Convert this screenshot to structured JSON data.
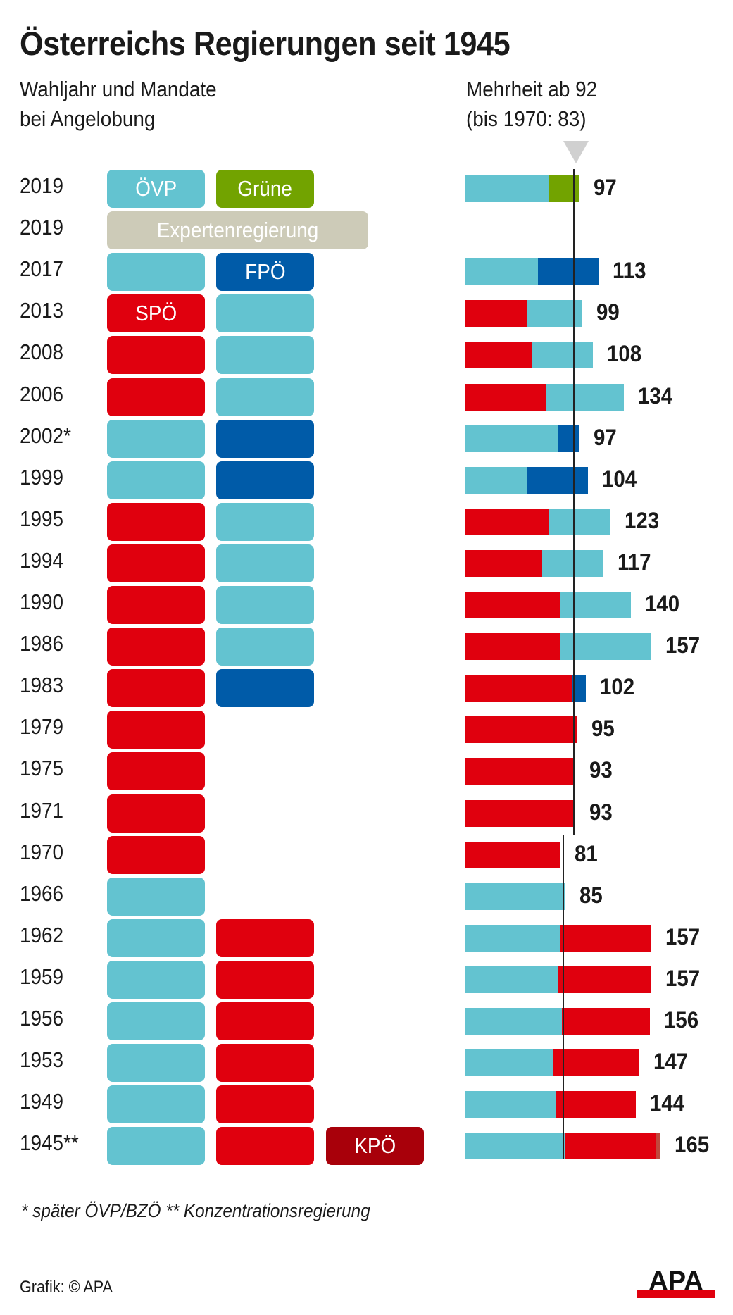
{
  "title": "Österreichs Regierungen seit 1945",
  "subtitle_left": [
    "Wahljahr und Mandate",
    "bei Angelobung"
  ],
  "subtitle_right": [
    "Mehrheit ab 92",
    "(bis 1970: 83)"
  ],
  "footnote": "* später ÖVP/BZÖ   ** Konzentrationsregierung",
  "credit": "Grafik: © APA",
  "logo_text": "APA",
  "colors": {
    "OEVP": "#63c3d0",
    "SPOE": "#e0000e",
    "FPOE": "#005ba8",
    "GRUENE": "#72a300",
    "KPOE": "#a8000a",
    "KPOE_bar": "#c0483c",
    "EXPERT": "#cdcbb8"
  },
  "chart_data": {
    "type": "bar",
    "stacked": true,
    "orientation": "horizontal",
    "xlabel": "Mandate",
    "majority_lines": [
      {
        "from": 1971,
        "value": 92
      },
      {
        "until": 1970,
        "value": 83
      }
    ],
    "rows": [
      {
        "year": "2019",
        "boxes": [
          {
            "party": "OEVP",
            "label": "ÖVP"
          },
          {
            "party": "GRUENE",
            "label": "Grüne"
          }
        ],
        "segments": [
          {
            "party": "OEVP",
            "seats": 71
          },
          {
            "party": "GRUENE",
            "seats": 26
          }
        ],
        "total": "97",
        "majority": 92
      },
      {
        "year": "2019",
        "boxes": [
          {
            "party": "EXPERT",
            "label": "Expertenregierung",
            "wide": true
          }
        ],
        "segments": [],
        "total": null,
        "majority": 92
      },
      {
        "year": "2017",
        "boxes": [
          {
            "party": "OEVP"
          },
          {
            "party": "FPOE",
            "label": "FPÖ"
          }
        ],
        "segments": [
          {
            "party": "OEVP",
            "seats": 62
          },
          {
            "party": "FPOE",
            "seats": 51
          }
        ],
        "total": "113",
        "majority": 92
      },
      {
        "year": "2013",
        "boxes": [
          {
            "party": "SPOE",
            "label": "SPÖ"
          },
          {
            "party": "OEVP"
          }
        ],
        "segments": [
          {
            "party": "SPOE",
            "seats": 52
          },
          {
            "party": "OEVP",
            "seats": 47
          }
        ],
        "total": "99",
        "majority": 92
      },
      {
        "year": "2008",
        "boxes": [
          {
            "party": "SPOE"
          },
          {
            "party": "OEVP"
          }
        ],
        "segments": [
          {
            "party": "SPOE",
            "seats": 57
          },
          {
            "party": "OEVP",
            "seats": 51
          }
        ],
        "total": "108",
        "majority": 92
      },
      {
        "year": "2006",
        "boxes": [
          {
            "party": "SPOE"
          },
          {
            "party": "OEVP"
          }
        ],
        "segments": [
          {
            "party": "SPOE",
            "seats": 68
          },
          {
            "party": "OEVP",
            "seats": 66
          }
        ],
        "total": "134",
        "majority": 92
      },
      {
        "year": "2002*",
        "boxes": [
          {
            "party": "OEVP"
          },
          {
            "party": "FPOE"
          }
        ],
        "segments": [
          {
            "party": "OEVP",
            "seats": 79
          },
          {
            "party": "FPOE",
            "seats": 18
          }
        ],
        "total": "97",
        "majority": 92
      },
      {
        "year": "1999",
        "boxes": [
          {
            "party": "OEVP"
          },
          {
            "party": "FPOE"
          }
        ],
        "segments": [
          {
            "party": "OEVP",
            "seats": 52
          },
          {
            "party": "FPOE",
            "seats": 52
          }
        ],
        "total": "104",
        "majority": 92
      },
      {
        "year": "1995",
        "boxes": [
          {
            "party": "SPOE"
          },
          {
            "party": "OEVP"
          }
        ],
        "segments": [
          {
            "party": "SPOE",
            "seats": 71
          },
          {
            "party": "OEVP",
            "seats": 52
          }
        ],
        "total": "123",
        "majority": 92
      },
      {
        "year": "1994",
        "boxes": [
          {
            "party": "SPOE"
          },
          {
            "party": "OEVP"
          }
        ],
        "segments": [
          {
            "party": "SPOE",
            "seats": 65
          },
          {
            "party": "OEVP",
            "seats": 52
          }
        ],
        "total": "117",
        "majority": 92
      },
      {
        "year": "1990",
        "boxes": [
          {
            "party": "SPOE"
          },
          {
            "party": "OEVP"
          }
        ],
        "segments": [
          {
            "party": "SPOE",
            "seats": 80
          },
          {
            "party": "OEVP",
            "seats": 60
          }
        ],
        "total": "140",
        "majority": 92
      },
      {
        "year": "1986",
        "boxes": [
          {
            "party": "SPOE"
          },
          {
            "party": "OEVP"
          }
        ],
        "segments": [
          {
            "party": "SPOE",
            "seats": 80
          },
          {
            "party": "OEVP",
            "seats": 77
          }
        ],
        "total": "157",
        "majority": 92
      },
      {
        "year": "1983",
        "boxes": [
          {
            "party": "SPOE"
          },
          {
            "party": "FPOE"
          }
        ],
        "segments": [
          {
            "party": "SPOE",
            "seats": 90
          },
          {
            "party": "FPOE",
            "seats": 12
          }
        ],
        "total": "102",
        "majority": 92
      },
      {
        "year": "1979",
        "boxes": [
          {
            "party": "SPOE"
          }
        ],
        "segments": [
          {
            "party": "SPOE",
            "seats": 95
          }
        ],
        "total": "95",
        "majority": 92
      },
      {
        "year": "1975",
        "boxes": [
          {
            "party": "SPOE"
          }
        ],
        "segments": [
          {
            "party": "SPOE",
            "seats": 93
          }
        ],
        "total": "93",
        "majority": 92
      },
      {
        "year": "1971",
        "boxes": [
          {
            "party": "SPOE"
          }
        ],
        "segments": [
          {
            "party": "SPOE",
            "seats": 93
          }
        ],
        "total": "93",
        "majority": 92
      },
      {
        "year": "1970",
        "boxes": [
          {
            "party": "SPOE"
          }
        ],
        "segments": [
          {
            "party": "SPOE",
            "seats": 81
          }
        ],
        "total": "81",
        "majority": 83
      },
      {
        "year": "1966",
        "boxes": [
          {
            "party": "OEVP"
          }
        ],
        "segments": [
          {
            "party": "OEVP",
            "seats": 85
          }
        ],
        "total": "85",
        "majority": 83
      },
      {
        "year": "1962",
        "boxes": [
          {
            "party": "OEVP"
          },
          {
            "party": "SPOE"
          }
        ],
        "segments": [
          {
            "party": "OEVP",
            "seats": 81
          },
          {
            "party": "SPOE",
            "seats": 76
          }
        ],
        "total": "157",
        "majority": 83
      },
      {
        "year": "1959",
        "boxes": [
          {
            "party": "OEVP"
          },
          {
            "party": "SPOE"
          }
        ],
        "segments": [
          {
            "party": "OEVP",
            "seats": 79
          },
          {
            "party": "SPOE",
            "seats": 78
          }
        ],
        "total": "157",
        "majority": 83
      },
      {
        "year": "1956",
        "boxes": [
          {
            "party": "OEVP"
          },
          {
            "party": "SPOE"
          }
        ],
        "segments": [
          {
            "party": "OEVP",
            "seats": 82
          },
          {
            "party": "SPOE",
            "seats": 74
          }
        ],
        "total": "156",
        "majority": 83
      },
      {
        "year": "1953",
        "boxes": [
          {
            "party": "OEVP"
          },
          {
            "party": "SPOE"
          }
        ],
        "segments": [
          {
            "party": "OEVP",
            "seats": 74
          },
          {
            "party": "SPOE",
            "seats": 73
          }
        ],
        "total": "147",
        "majority": 83
      },
      {
        "year": "1949",
        "boxes": [
          {
            "party": "OEVP"
          },
          {
            "party": "SPOE"
          }
        ],
        "segments": [
          {
            "party": "OEVP",
            "seats": 77
          },
          {
            "party": "SPOE",
            "seats": 67
          }
        ],
        "total": "144",
        "majority": 83
      },
      {
        "year": "1945**",
        "boxes": [
          {
            "party": "OEVP"
          },
          {
            "party": "SPOE"
          },
          {
            "party": "KPOE",
            "label": "KPÖ"
          }
        ],
        "segments": [
          {
            "party": "OEVP",
            "seats": 85
          },
          {
            "party": "SPOE",
            "seats": 76
          },
          {
            "party": "KPOE_bar",
            "seats": 4
          }
        ],
        "total": "165",
        "majority": 83
      }
    ]
  }
}
